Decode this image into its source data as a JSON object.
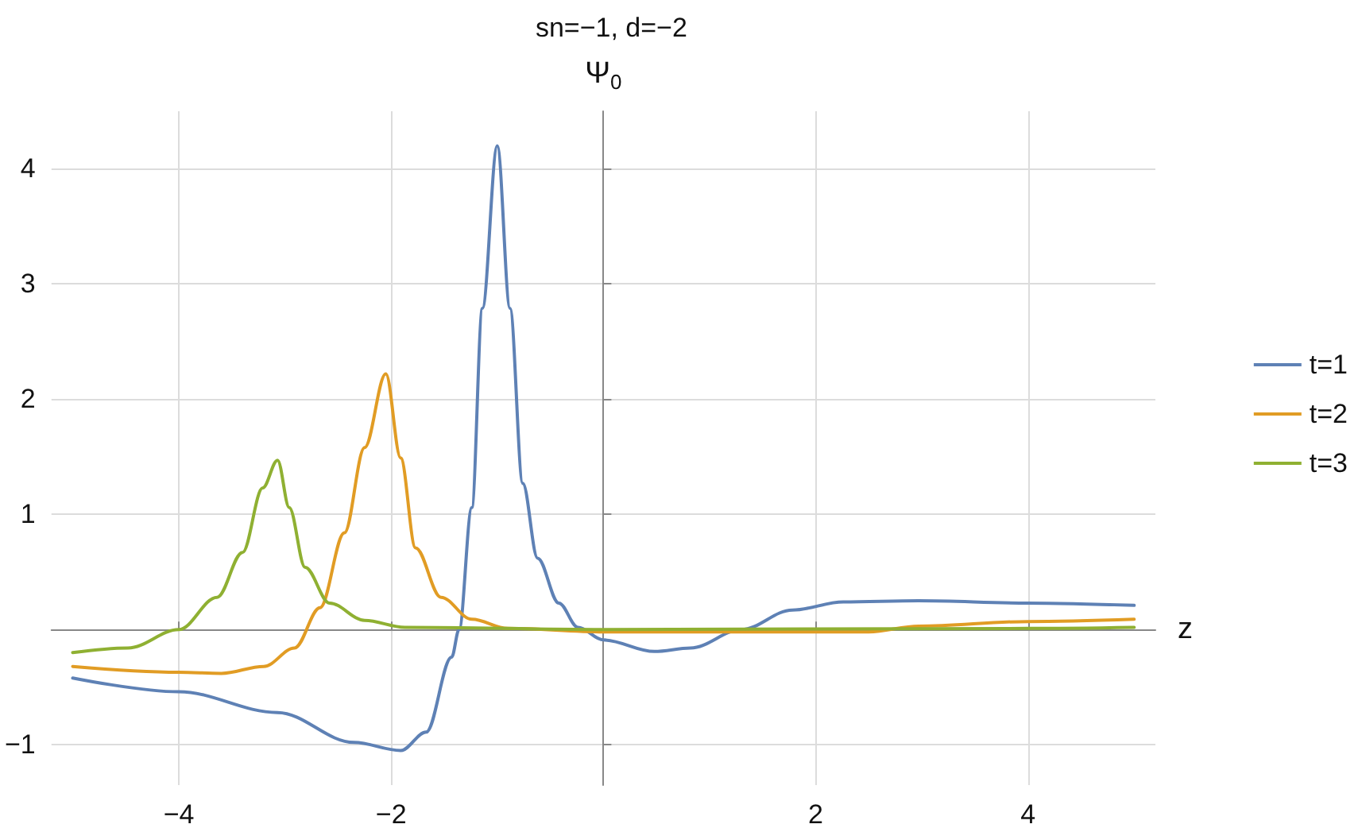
{
  "chart_data": {
    "type": "line",
    "title": "sn=−1, d=−2",
    "ylabel": "Ψ$_{0}$",
    "xlabel": "z",
    "xlim": [
      -5.2,
      5.2
    ],
    "ylim": [
      -1.35,
      4.5
    ],
    "xticks": [
      -4,
      -2,
      2,
      4
    ],
    "yticks": [
      -1,
      1,
      2,
      3,
      4
    ],
    "grid": true,
    "legend": "right",
    "marker": "none",
    "line_style": "solid",
    "series": [
      {
        "name": "t=1",
        "color": "#5e81b5",
        "x": [
          -5,
          -4,
          -3.07,
          -2.35,
          -1.91,
          -1.67,
          -1.43,
          -1.36,
          -1.24,
          -1.14,
          -1,
          -0.88,
          -0.76,
          -0.62,
          -0.42,
          -0.24,
          0,
          0.48,
          0.82,
          1.3,
          1.78,
          2.26,
          2.97,
          4,
          5
        ],
        "values": [
          -0.42,
          -0.54,
          -0.72,
          -0.98,
          -1.05,
          -0.89,
          -0.24,
          0,
          1.06,
          2.79,
          4.2,
          2.79,
          1.27,
          0.62,
          0.23,
          0.02,
          -0.09,
          -0.19,
          -0.16,
          0,
          0.17,
          0.24,
          0.25,
          0.23,
          0.21
        ]
      },
      {
        "name": "t=2",
        "color": "#e19c24",
        "x": [
          -5,
          -4,
          -3.6,
          -3.2,
          -2.91,
          -2.67,
          -2.44,
          -2.25,
          -2.05,
          -1.91,
          -1.77,
          -1.53,
          -1.24,
          -0.9,
          0,
          2.5,
          2.97,
          4,
          5
        ],
        "values": [
          -0.32,
          -0.37,
          -0.38,
          -0.32,
          -0.16,
          0.19,
          0.84,
          1.58,
          2.22,
          1.49,
          0.71,
          0.28,
          0.09,
          0.01,
          -0.02,
          -0.02,
          0.03,
          0.07,
          0.09
        ]
      },
      {
        "name": "t=3",
        "color": "#8fb032",
        "x": [
          -5,
          -4.48,
          -4,
          -3.64,
          -3.4,
          -3.21,
          -3.07,
          -2.96,
          -2.81,
          -2.58,
          -2.25,
          -1.87,
          0,
          4,
          5
        ],
        "values": [
          -0.2,
          -0.16,
          0,
          0.28,
          0.67,
          1.23,
          1.47,
          1.06,
          0.54,
          0.23,
          0.08,
          0.02,
          0,
          0.01,
          0.02
        ]
      }
    ]
  }
}
